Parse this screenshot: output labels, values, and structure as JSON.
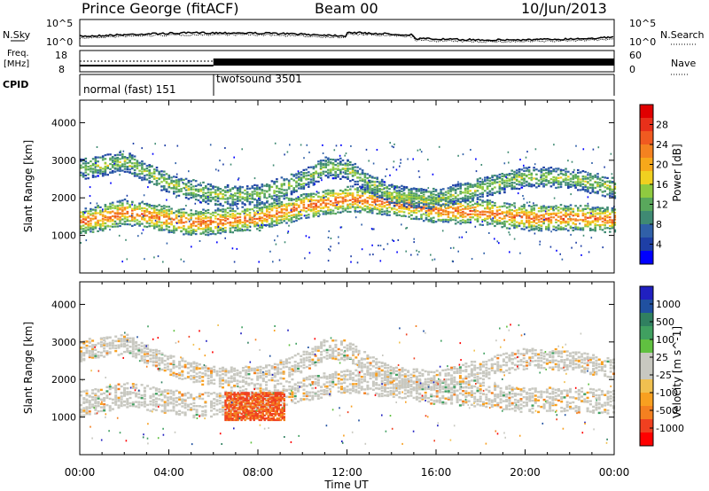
{
  "header": {
    "station": "Prince George (fitACF)",
    "beam": "Beam 00",
    "date": "10/Jun/2013"
  },
  "top_panels": {
    "nsky_label": "N.Sky",
    "nsky_ticks": [
      "10^5",
      "10^0"
    ],
    "nsearch_label": "N.Search",
    "nsearch_ticks": [
      "10^5",
      "10^0"
    ],
    "freq_label": "Freq.",
    "freq_unit": "[MHz]",
    "freq_ticks": [
      "18",
      "8"
    ],
    "nave_label": "Nave",
    "nave_ticks": [
      "60",
      "0"
    ],
    "cpid_label": "CPID",
    "cpid_segments": [
      {
        "label": "normal (fast) 151",
        "start_hour": 0,
        "end_hour": 6
      },
      {
        "label": "twofsound 3501",
        "start_hour": 6,
        "end_hour": 24
      }
    ]
  },
  "colors": {
    "power_scale": [
      "#0000ff",
      "#1e3fa6",
      "#3060a8",
      "#3f8a73",
      "#59a85c",
      "#8fca40",
      "#f0d020",
      "#f7a81a",
      "#f48220",
      "#f05a20",
      "#e8301a",
      "#e00000"
    ],
    "velocity_scale": [
      "#ff0000",
      "#f04020",
      "#f48020",
      "#f8a020",
      "#f0c050",
      "#c8c8c0",
      "#c8c8c0",
      "#60c040",
      "#40a060",
      "#308060",
      "#2050a0",
      "#2020c0"
    ]
  },
  "chart_data": [
    {
      "type": "heatmap",
      "title": "",
      "xlabel": "Time UT",
      "ylabel": "Slant Range [km]",
      "colorbar_label": "Power [dB]",
      "xlim": [
        0,
        24
      ],
      "ylim": [
        0,
        4600
      ],
      "x_ticks": [
        "00:00",
        "04:00",
        "08:00",
        "12:00",
        "16:00",
        "20:00",
        "00:00"
      ],
      "y_ticks": [
        1000,
        2000,
        3000,
        4000
      ],
      "colorbar_ticks": [
        4,
        8,
        12,
        16,
        20,
        24,
        28
      ],
      "bands": [
        {
          "name": "main",
          "points": [
            [
              0,
              1400
            ],
            [
              1,
              1500
            ],
            [
              2,
              1650
            ],
            [
              3,
              1550
            ],
            [
              4,
              1450
            ],
            [
              5,
              1350
            ],
            [
              6,
              1400
            ],
            [
              8,
              1500
            ],
            [
              10,
              1800
            ],
            [
              12,
              2000
            ],
            [
              14,
              1900
            ],
            [
              16,
              1700
            ],
            [
              18,
              1650
            ],
            [
              20,
              1500
            ],
            [
              22,
              1500
            ],
            [
              24,
              1450
            ]
          ],
          "width": 320,
          "power": 24
        },
        {
          "name": "upper",
          "points": [
            [
              0,
              2800
            ],
            [
              2,
              3000
            ],
            [
              4,
              2400
            ],
            [
              6,
              2100
            ],
            [
              8,
              2100
            ],
            [
              10,
              2500
            ],
            [
              11,
              2850
            ],
            [
              12,
              2800
            ],
            [
              13,
              2400
            ],
            [
              14,
              2100
            ],
            [
              16,
              2000
            ],
            [
              18,
              2300
            ],
            [
              20,
              2600
            ],
            [
              22,
              2550
            ],
            [
              24,
              2300
            ]
          ],
          "width": 260,
          "power": 14
        }
      ]
    },
    {
      "type": "heatmap",
      "title": "",
      "xlabel": "Time UT",
      "ylabel": "Slant Range [km]",
      "colorbar_label": "Velocity [m s^-1]",
      "xlim": [
        0,
        24
      ],
      "ylim": [
        0,
        4600
      ],
      "x_ticks": [
        "00:00",
        "04:00",
        "08:00",
        "12:00",
        "16:00",
        "20:00",
        "00:00"
      ],
      "y_ticks": [
        1000,
        2000,
        3000,
        4000
      ],
      "colorbar_ticks": [
        "1000",
        "500",
        "100",
        "25",
        "-25",
        "-100",
        "-500",
        "-1000"
      ],
      "hotspot": {
        "x_range": [
          6.5,
          9.2
        ],
        "y_range": [
          950,
          1700
        ],
        "velocity": -500
      }
    }
  ]
}
